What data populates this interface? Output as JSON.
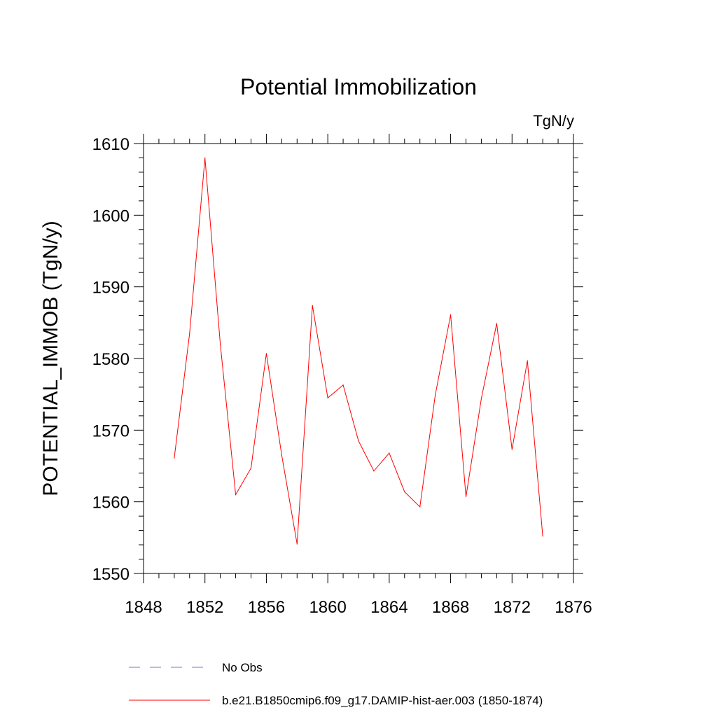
{
  "chart_data": {
    "type": "line",
    "title": "Potential Immobilization",
    "units": "TgN/y",
    "ylabel": "POTENTIAL_IMMOB  (TgN/y)",
    "xlabel": "",
    "xlim": [
      1848,
      1876
    ],
    "ylim": [
      1550,
      1610
    ],
    "x_ticks": [
      1848,
      1852,
      1856,
      1860,
      1864,
      1868,
      1872,
      1876
    ],
    "y_ticks": [
      1550,
      1560,
      1570,
      1580,
      1590,
      1600,
      1610
    ],
    "x_tick_labels": [
      "1848",
      "1852",
      "1856",
      "1860",
      "1864",
      "1868",
      "1872",
      "1876"
    ],
    "y_tick_labels": [
      "1550",
      "1560",
      "1570",
      "1580",
      "1590",
      "1600",
      "1610"
    ],
    "grid": false,
    "legend_position": "bottom",
    "x": [
      1850,
      1851,
      1852,
      1853,
      1854,
      1855,
      1856,
      1857,
      1858,
      1859,
      1860,
      1861,
      1862,
      1863,
      1864,
      1865,
      1866,
      1867,
      1868,
      1869,
      1870,
      1871,
      1872,
      1873,
      1874
    ],
    "series": [
      {
        "name": "b.e21.B1850cmip6.f09_g17.DAMIP-hist-aer.003 (1850-1874)",
        "color": "#ff0000",
        "style": "solid",
        "values": [
          1566.1,
          1583.5,
          1608.0,
          1582.0,
          1561.0,
          1564.7,
          1580.7,
          1566.5,
          1554.1,
          1587.4,
          1574.5,
          1576.3,
          1568.5,
          1564.3,
          1566.8,
          1561.4,
          1559.3,
          1574.9,
          1586.1,
          1560.7,
          1574.4,
          1584.9,
          1567.3,
          1579.7,
          1555.2
        ]
      }
    ],
    "legend": [
      {
        "label": "No Obs",
        "color": "#7777cc",
        "style": "dashed"
      },
      {
        "label": "b.e21.B1850cmip6.f09_g17.DAMIP-hist-aer.003 (1850-1874)",
        "color": "#ff0000",
        "style": "solid"
      }
    ]
  }
}
